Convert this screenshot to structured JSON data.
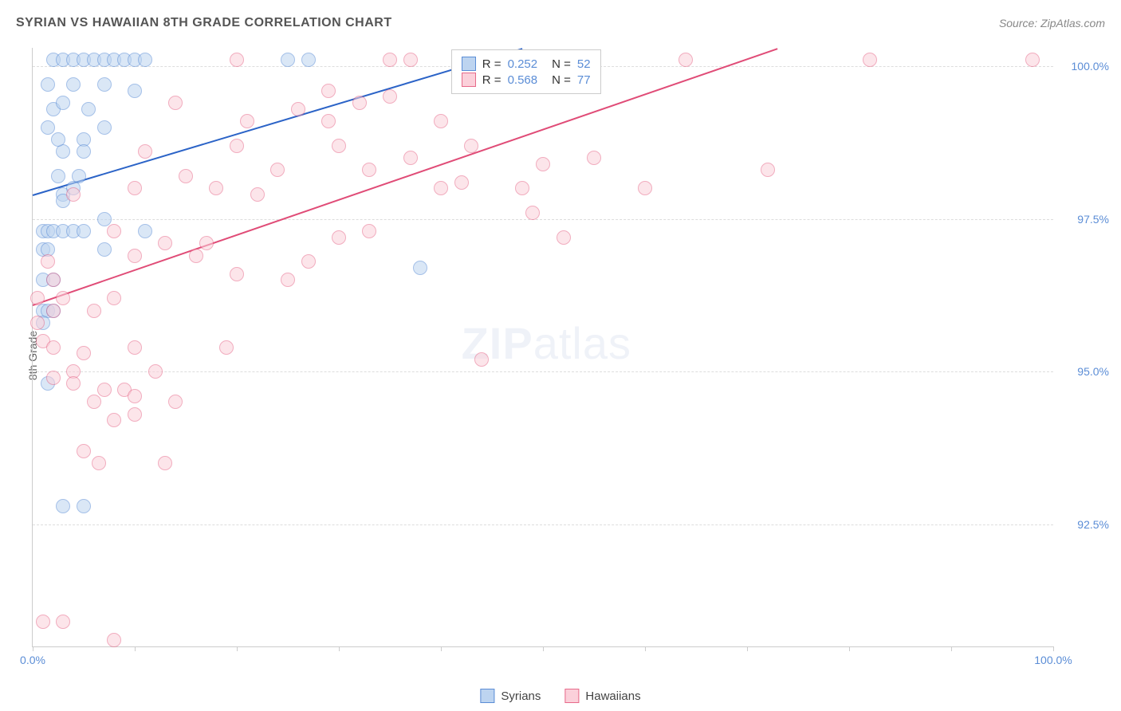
{
  "header": {
    "title": "SYRIAN VS HAWAIIAN 8TH GRADE CORRELATION CHART",
    "source": "Source: ZipAtlas.com"
  },
  "y_axis": {
    "title": "8th Grade"
  },
  "watermark": {
    "part1": "ZIP",
    "part2": "atlas"
  },
  "chart": {
    "type": "scatter",
    "xlim": [
      0,
      100
    ],
    "ylim": [
      90.5,
      100.3
    ],
    "x_ticks": [
      0,
      10,
      20,
      30,
      40,
      50,
      60,
      70,
      80,
      90,
      100
    ],
    "x_tick_labels": {
      "0": "0.0%",
      "100": "100.0%"
    },
    "y_gridlines": [
      92.5,
      95.0,
      97.5,
      100.0
    ],
    "y_tick_labels": {
      "92.5": "92.5%",
      "95.0": "95.0%",
      "97.5": "97.5%",
      "100.0": "100.0%"
    },
    "background_color": "#ffffff",
    "grid_color": "#dddddd",
    "axis_color": "#cccccc",
    "point_radius": 8,
    "point_opacity": 0.55,
    "series": [
      {
        "name": "Syrians",
        "fill": "#bdd4f0",
        "stroke": "#5b8dd6",
        "trend": {
          "x1": 0,
          "y1": 97.9,
          "x2": 48,
          "y2": 100.3,
          "color": "#2b63c7",
          "width": 2
        },
        "stats": {
          "R": "0.252",
          "N": "52"
        },
        "points": [
          [
            2,
            100.1
          ],
          [
            3,
            100.1
          ],
          [
            4,
            100.1
          ],
          [
            5,
            100.1
          ],
          [
            6,
            100.1
          ],
          [
            7,
            100.1
          ],
          [
            8,
            100.1
          ],
          [
            9,
            100.1
          ],
          [
            10,
            100.1
          ],
          [
            11,
            100.1
          ],
          [
            1.5,
            99.7
          ],
          [
            4,
            99.7
          ],
          [
            7,
            99.7
          ],
          [
            10,
            99.6
          ],
          [
            2,
            99.3
          ],
          [
            3,
            99.4
          ],
          [
            5.5,
            99.3
          ],
          [
            5,
            98.8
          ],
          [
            7,
            99.0
          ],
          [
            3,
            98.6
          ],
          [
            5,
            98.6
          ],
          [
            2.5,
            98.2
          ],
          [
            4.5,
            98.2
          ],
          [
            3,
            97.9
          ],
          [
            1,
            97.3
          ],
          [
            1.5,
            97.3
          ],
          [
            2,
            97.3
          ],
          [
            3,
            97.3
          ],
          [
            4,
            97.3
          ],
          [
            5,
            97.3
          ],
          [
            7,
            97.5
          ],
          [
            7,
            97.0
          ],
          [
            1,
            97.0
          ],
          [
            1.5,
            97.0
          ],
          [
            1,
            96.0
          ],
          [
            1.5,
            96.0
          ],
          [
            2,
            96.0
          ],
          [
            1,
            95.8
          ],
          [
            25,
            100.1
          ],
          [
            27,
            100.1
          ],
          [
            44,
            100.1
          ],
          [
            38,
            96.7
          ],
          [
            1.5,
            94.8
          ],
          [
            3,
            92.8
          ],
          [
            5,
            92.8
          ],
          [
            1,
            96.5
          ],
          [
            2,
            96.5
          ],
          [
            3,
            97.8
          ],
          [
            4,
            98.0
          ],
          [
            11,
            97.3
          ],
          [
            1.5,
            99.0
          ],
          [
            2.5,
            98.8
          ]
        ]
      },
      {
        "name": "Hawaiians",
        "fill": "#fbd0da",
        "stroke": "#e76a8a",
        "trend": {
          "x1": 0,
          "y1": 96.1,
          "x2": 73,
          "y2": 100.3,
          "color": "#e04c77",
          "width": 2
        },
        "stats": {
          "R": "0.568",
          "N": "77"
        },
        "points": [
          [
            20,
            100.1
          ],
          [
            35,
            100.1
          ],
          [
            37,
            100.1
          ],
          [
            52,
            100.1
          ],
          [
            64,
            100.1
          ],
          [
            82,
            100.1
          ],
          [
            98,
            100.1
          ],
          [
            14,
            99.4
          ],
          [
            21,
            99.1
          ],
          [
            26,
            99.3
          ],
          [
            29,
            99.1
          ],
          [
            29,
            99.6
          ],
          [
            32,
            99.4
          ],
          [
            35,
            99.5
          ],
          [
            40,
            99.1
          ],
          [
            11,
            98.6
          ],
          [
            15,
            98.2
          ],
          [
            20,
            98.7
          ],
          [
            24,
            98.3
          ],
          [
            30,
            98.7
          ],
          [
            33,
            98.3
          ],
          [
            37,
            98.5
          ],
          [
            40,
            98.0
          ],
          [
            43,
            98.7
          ],
          [
            42,
            98.1
          ],
          [
            48,
            98.0
          ],
          [
            50,
            98.4
          ],
          [
            55,
            98.5
          ],
          [
            72,
            98.3
          ],
          [
            4,
            97.9
          ],
          [
            10,
            98.0
          ],
          [
            22,
            97.9
          ],
          [
            8,
            97.3
          ],
          [
            10,
            96.9
          ],
          [
            13,
            97.1
          ],
          [
            16,
            96.9
          ],
          [
            17,
            97.1
          ],
          [
            20,
            96.6
          ],
          [
            25,
            96.5
          ],
          [
            27,
            96.8
          ],
          [
            30,
            97.2
          ],
          [
            33,
            97.3
          ],
          [
            49,
            97.6
          ],
          [
            52,
            97.2
          ],
          [
            0.5,
            96.2
          ],
          [
            2,
            96.0
          ],
          [
            3,
            96.2
          ],
          [
            1,
            95.5
          ],
          [
            2,
            95.4
          ],
          [
            5,
            95.3
          ],
          [
            10,
            95.4
          ],
          [
            19,
            95.4
          ],
          [
            44,
            95.2
          ],
          [
            2,
            94.9
          ],
          [
            4,
            95.0
          ],
          [
            4,
            94.8
          ],
          [
            6,
            94.5
          ],
          [
            7,
            94.7
          ],
          [
            9,
            94.7
          ],
          [
            10,
            94.6
          ],
          [
            10,
            94.3
          ],
          [
            5,
            93.7
          ],
          [
            6.5,
            93.5
          ],
          [
            13,
            93.5
          ],
          [
            8,
            94.2
          ],
          [
            0.5,
            95.8
          ],
          [
            2,
            96.5
          ],
          [
            6,
            96.0
          ],
          [
            8,
            96.2
          ],
          [
            1.5,
            96.8
          ],
          [
            1,
            90.9
          ],
          [
            3,
            90.9
          ],
          [
            8,
            90.6
          ],
          [
            12,
            95.0
          ],
          [
            14,
            94.5
          ],
          [
            18,
            98.0
          ],
          [
            60,
            98.0
          ]
        ]
      }
    ]
  },
  "legend": {
    "series1_label": "Syrians",
    "series2_label": "Hawaiians"
  },
  "stats_box": {
    "r_label": "R =",
    "n_label": "N ="
  }
}
